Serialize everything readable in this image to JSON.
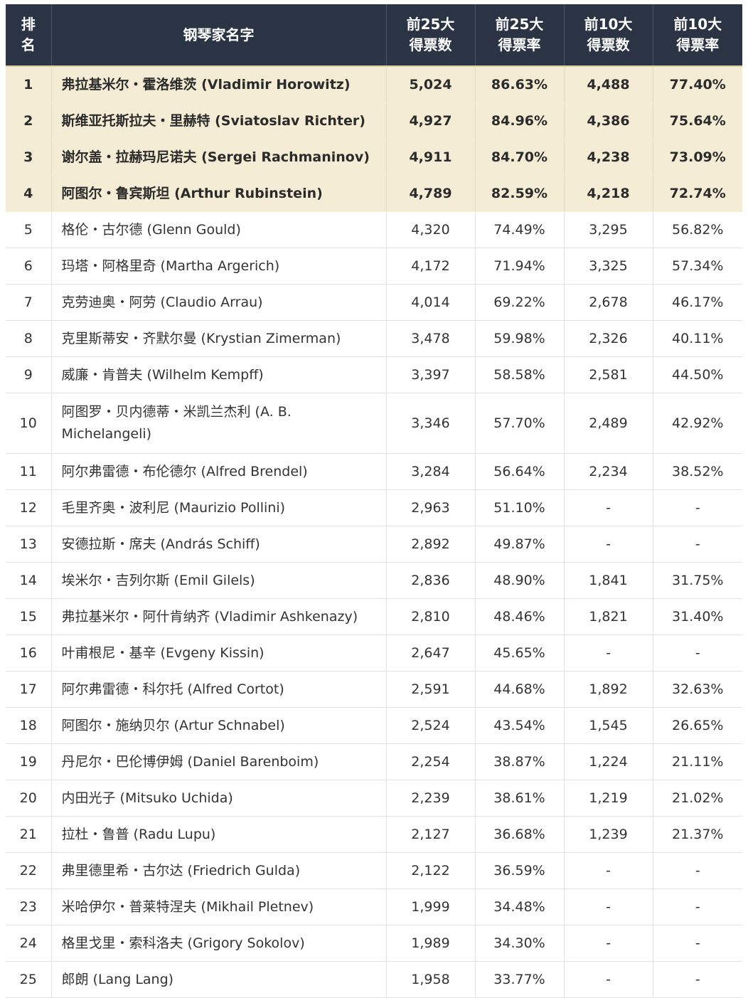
{
  "headers": {
    "rank": [
      "排",
      "名"
    ],
    "name": "钢琴家名字",
    "top25_votes": [
      "前25大",
      "得票数"
    ],
    "top25_rate": [
      "前25大",
      "得票率"
    ],
    "top10_votes": [
      "前10大",
      "得票数"
    ],
    "top10_rate": [
      "前10大",
      "得票率"
    ]
  },
  "rows": [
    {
      "rank": "1",
      "name": "弗拉基米尔・霍洛维茨 (Vladimir Horowitz)",
      "top25_votes": "5,024",
      "top25_rate": "86.63%",
      "top10_votes": "4,488",
      "top10_rate": "77.40%"
    },
    {
      "rank": "2",
      "name": "斯维亚托斯拉夫・里赫特 (Sviatoslav Richter)",
      "top25_votes": "4,927",
      "top25_rate": "84.96%",
      "top10_votes": "4,386",
      "top10_rate": "75.64%"
    },
    {
      "rank": "3",
      "name": "谢尔盖・拉赫玛尼诺夫 (Sergei Rachmaninov)",
      "top25_votes": "4,911",
      "top25_rate": "84.70%",
      "top10_votes": "4,238",
      "top10_rate": "73.09%"
    },
    {
      "rank": "4",
      "name": "阿图尔・鲁宾斯坦 (Arthur Rubinstein)",
      "top25_votes": "4,789",
      "top25_rate": "82.59%",
      "top10_votes": "4,218",
      "top10_rate": "72.74%"
    },
    {
      "rank": "5",
      "name": "格伦・古尔德 (Glenn Gould)",
      "top25_votes": "4,320",
      "top25_rate": "74.49%",
      "top10_votes": "3,295",
      "top10_rate": "56.82%"
    },
    {
      "rank": "6",
      "name": "玛塔・阿格里奇 (Martha Argerich)",
      "top25_votes": "4,172",
      "top25_rate": "71.94%",
      "top10_votes": "3,325",
      "top10_rate": "57.34%"
    },
    {
      "rank": "7",
      "name": "克劳迪奥・阿劳 (Claudio Arrau)",
      "top25_votes": "4,014",
      "top25_rate": "69.22%",
      "top10_votes": "2,678",
      "top10_rate": "46.17%"
    },
    {
      "rank": "8",
      "name": "克里斯蒂安・齐默尔曼 (Krystian Zimerman)",
      "top25_votes": "3,478",
      "top25_rate": "59.98%",
      "top10_votes": "2,326",
      "top10_rate": "40.11%"
    },
    {
      "rank": "9",
      "name": "威廉・肯普夫 (Wilhelm Kempff)",
      "top25_votes": "3,397",
      "top25_rate": "58.58%",
      "top10_votes": "2,581",
      "top10_rate": "44.50%"
    },
    {
      "rank": "10",
      "name": "阿图罗・贝内德蒂・米凯兰杰利 (A. B. Michelangeli)",
      "top25_votes": "3,346",
      "top25_rate": "57.70%",
      "top10_votes": "2,489",
      "top10_rate": "42.92%"
    },
    {
      "rank": "11",
      "name": "阿尔弗雷德・布伦德尔 (Alfred Brendel)",
      "top25_votes": "3,284",
      "top25_rate": "56.64%",
      "top10_votes": "2,234",
      "top10_rate": "38.52%"
    },
    {
      "rank": "12",
      "name": "毛里齐奥・波利尼 (Maurizio Pollini)",
      "top25_votes": "2,963",
      "top25_rate": "51.10%",
      "top10_votes": "-",
      "top10_rate": "-"
    },
    {
      "rank": "13",
      "name": "安德拉斯・席夫 (András Schiff)",
      "top25_votes": "2,892",
      "top25_rate": "49.87%",
      "top10_votes": "-",
      "top10_rate": "-"
    },
    {
      "rank": "14",
      "name": "埃米尔・吉列尔斯 (Emil Gilels)",
      "top25_votes": "2,836",
      "top25_rate": "48.90%",
      "top10_votes": "1,841",
      "top10_rate": "31.75%"
    },
    {
      "rank": "15",
      "name": "弗拉基米尔・阿什肯纳齐 (Vladimir Ashkenazy)",
      "top25_votes": "2,810",
      "top25_rate": "48.46%",
      "top10_votes": "1,821",
      "top10_rate": "31.40%"
    },
    {
      "rank": "16",
      "name": "叶甫根尼・基辛 (Evgeny Kissin)",
      "top25_votes": "2,647",
      "top25_rate": "45.65%",
      "top10_votes": "-",
      "top10_rate": "-"
    },
    {
      "rank": "17",
      "name": "阿尔弗雷德・科尔托 (Alfred Cortot)",
      "top25_votes": "2,591",
      "top25_rate": "44.68%",
      "top10_votes": "1,892",
      "top10_rate": "32.63%"
    },
    {
      "rank": "18",
      "name": "阿图尔・施纳贝尔 (Artur Schnabel)",
      "top25_votes": "2,524",
      "top25_rate": "43.54%",
      "top10_votes": "1,545",
      "top10_rate": "26.65%"
    },
    {
      "rank": "19",
      "name": "丹尼尔・巴伦博伊姆 (Daniel Barenboim)",
      "top25_votes": "2,254",
      "top25_rate": "38.87%",
      "top10_votes": "1,224",
      "top10_rate": "21.11%"
    },
    {
      "rank": "20",
      "name": "内田光子 (Mitsuko Uchida)",
      "top25_votes": "2,239",
      "top25_rate": "38.61%",
      "top10_votes": "1,219",
      "top10_rate": "21.02%"
    },
    {
      "rank": "21",
      "name": "拉杜・鲁普 (Radu Lupu)",
      "top25_votes": "2,127",
      "top25_rate": "36.68%",
      "top10_votes": "1,239",
      "top10_rate": "21.37%"
    },
    {
      "rank": "22",
      "name": "弗里德里希・古尔达 (Friedrich Gulda)",
      "top25_votes": "2,122",
      "top25_rate": "36.59%",
      "top10_votes": "-",
      "top10_rate": "-"
    },
    {
      "rank": "23",
      "name": "米哈伊尔・普莱特涅夫 (Mikhail Pletnev)",
      "top25_votes": "1,999",
      "top25_rate": "34.48%",
      "top10_votes": "-",
      "top10_rate": "-"
    },
    {
      "rank": "24",
      "name": "格里戈里・索科洛夫 (Grigory Sokolov)",
      "top25_votes": "1,989",
      "top25_rate": "34.30%",
      "top10_votes": "-",
      "top10_rate": "-"
    },
    {
      "rank": "25",
      "name": "郎朗 (Lang Lang)",
      "top25_votes": "1,958",
      "top25_rate": "33.77%",
      "top10_votes": "-",
      "top10_rate": "-"
    }
  ]
}
